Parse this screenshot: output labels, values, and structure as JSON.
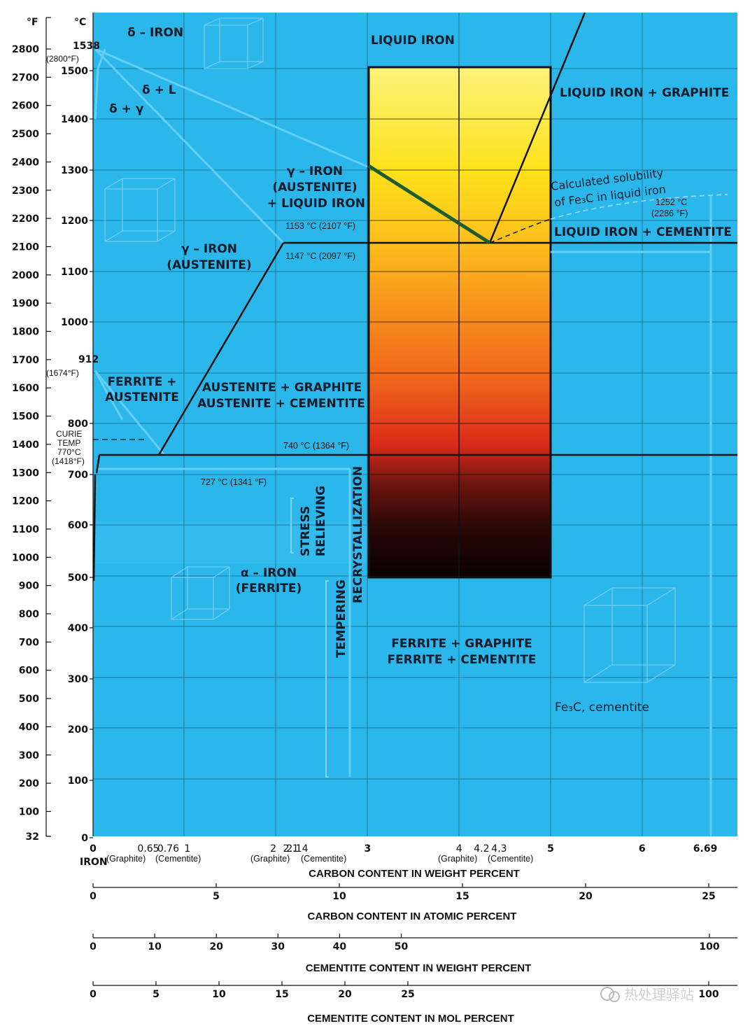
{
  "axes": {
    "f_unit": "°F",
    "c_unit": "°C",
    "f_ticks": [
      "2800",
      "2700",
      "2600",
      "2500",
      "2400",
      "2300",
      "2200",
      "2100",
      "2000",
      "1900",
      "1800",
      "1700",
      "1600",
      "1500",
      "1400",
      "1300",
      "1200",
      "1100",
      "1000",
      "900",
      "800",
      "700",
      "600",
      "500",
      "400",
      "300",
      "200",
      "100",
      "32"
    ],
    "c_ticks": [
      "1500",
      "1400",
      "1300",
      "1200",
      "1100",
      "1000",
      "800",
      "700",
      "600",
      "500",
      "400",
      "300",
      "200",
      "100",
      "0"
    ],
    "c_melting": "1538",
    "f_melting": "(2800°F)",
    "c_912": "912",
    "f_912": "(1674°F)",
    "curie": [
      "CURIE",
      "TEMP",
      "770°C",
      "(1418°F)"
    ]
  },
  "regions": {
    "delta_iron": "δ – IRON",
    "delta_l": "δ + L",
    "delta_gamma": "δ + γ",
    "liquid_iron": "LIQUID IRON",
    "liquid_graphite": "LIQUID IRON + GRAPHITE",
    "liquid_cementite": "LIQUID IRON + CEMENTITE",
    "gamma_liquid": [
      "γ – IRON",
      "(AUSTENITE)",
      "+ LIQUID IRON"
    ],
    "gamma_iron": [
      "γ – IRON",
      "(AUSTENITE)"
    ],
    "ferrite_austenite": [
      "FERRITE +",
      "AUSTENITE"
    ],
    "austenite_graphite": [
      "AUSTENITE + GRAPHITE",
      "AUSTENITE + CEMENTITE"
    ],
    "alpha_iron": [
      "α – IRON",
      "(FERRITE)"
    ],
    "ferrite_graphite": [
      "FERRITE + GRAPHITE",
      "FERRITE + CEMENTITE"
    ],
    "stress_relieving": [
      "STRESS",
      "RELIEVING"
    ],
    "recrystallization": "RECRYSTALLIZATION",
    "tempering": "TEMPERING",
    "cementite_label": "Fe₃C, cementite"
  },
  "annotations": {
    "t1153": "1153 °C (2107 °F)",
    "t1147": "1147 °C (2097 °F)",
    "t740": "740 °C (1364 °F)",
    "t727": "727 °C (1341 °F)",
    "solubility": [
      "Calculated solubility",
      "of Fe₃C in liquid iron"
    ],
    "t1252": [
      "1252 °C",
      "(2286 °F)"
    ]
  },
  "weight_axis": {
    "ticks": [
      "0",
      "0.65",
      "0.76",
      "1",
      "2",
      "2.1",
      "2.14",
      "3",
      "4",
      "4.2",
      "4.3",
      "5",
      "6",
      "6.69"
    ],
    "iron_label": "IRON",
    "graphite": "(Graphite)",
    "cementite": "(Cementite)",
    "title": "CARBON CONTENT IN WEIGHT PERCENT"
  },
  "atomic_axis": {
    "ticks": [
      "0",
      "5",
      "10",
      "15",
      "20",
      "25"
    ],
    "title": "CARBON CONTENT IN ATOMIC PERCENT"
  },
  "cem_weight_axis": {
    "ticks": [
      "0",
      "10",
      "20",
      "30",
      "40",
      "50",
      "100"
    ],
    "title": "CEMENTITE CONTENT IN WEIGHT PERCENT"
  },
  "cem_mol_axis": {
    "ticks": [
      "0",
      "5",
      "10",
      "15",
      "20",
      "25",
      "100"
    ],
    "title": "CEMENTITE CONTENT IN MOL PERCENT"
  },
  "watermark": "热处理驿站",
  "colors": {
    "bg": "#2cb7ea",
    "line": "#111111",
    "green": "#1f5c2e"
  }
}
